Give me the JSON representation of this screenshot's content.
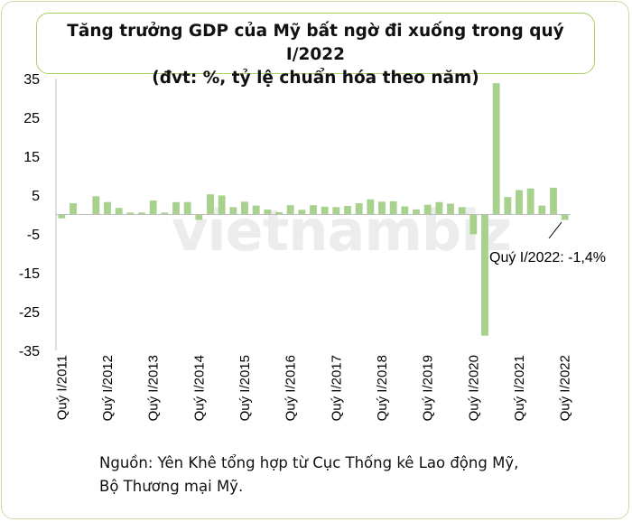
{
  "chart_data": {
    "type": "bar",
    "title": "Tăng trưởng GDP của Mỹ bất ngờ đi xuống trong quý I/2022",
    "subtitle": "(đvt: %, tỷ lệ chuẩn hóa theo năm)",
    "xlabel": "",
    "ylabel": "",
    "ylim": [
      -35,
      35
    ],
    "yticks": [
      35,
      25,
      15,
      5,
      -5,
      -15,
      -25,
      -35
    ],
    "grid": false,
    "bar_color": "#a9d18e",
    "categories": [
      "Quý I/2011",
      "Quý II/2011",
      "Quý III/2011",
      "Quý IV/2011",
      "Quý I/2012",
      "Quý II/2012",
      "Quý III/2012",
      "Quý IV/2012",
      "Quý I/2013",
      "Quý II/2013",
      "Quý III/2013",
      "Quý IV/2013",
      "Quý I/2014",
      "Quý II/2014",
      "Quý III/2014",
      "Quý IV/2014",
      "Quý I/2015",
      "Quý II/2015",
      "Quý III/2015",
      "Quý IV/2015",
      "Quý I/2016",
      "Quý II/2016",
      "Quý III/2016",
      "Quý IV/2016",
      "Quý I/2017",
      "Quý II/2017",
      "Quý III/2017",
      "Quý IV/2017",
      "Quý I/2018",
      "Quý II/2018",
      "Quý III/2018",
      "Quý IV/2018",
      "Quý I/2019",
      "Quý II/2019",
      "Quý III/2019",
      "Quý IV/2019",
      "Quý I/2020",
      "Quý II/2020",
      "Quý III/2020",
      "Quý IV/2020",
      "Quý I/2021",
      "Quý II/2021",
      "Quý III/2021",
      "Quý IV/2021",
      "Quý I/2022"
    ],
    "tick_labels": [
      "Quý I/2011",
      "Quý I/2012",
      "Quý I/2013",
      "Quý I/2014",
      "Quý I/2015",
      "Quý I/2016",
      "Quý I/2017",
      "Quý I/2018",
      "Quý I/2019",
      "Quý I/2020",
      "Quý I/2021",
      "Quý I/2022"
    ],
    "values": [
      -1.0,
      2.9,
      -0.1,
      4.7,
      3.2,
      1.7,
      0.5,
      0.5,
      3.6,
      0.5,
      3.2,
      3.2,
      -1.4,
      5.2,
      4.9,
      1.9,
      3.3,
      2.3,
      1.3,
      0.6,
      2.4,
      1.2,
      2.4,
      2.0,
      1.9,
      2.2,
      2.9,
      3.9,
      3.3,
      3.4,
      2.1,
      1.3,
      2.5,
      3.2,
      2.8,
      1.9,
      -5.1,
      -31.2,
      33.8,
      4.5,
      6.3,
      6.7,
      2.3,
      6.9,
      -1.4
    ],
    "annotation": "Quý I/2022: -1,4%",
    "watermark": "vietnambiz"
  },
  "source": {
    "line1": "Nguồn: Yên Khê tổng hợp từ Cục Thống kê Lao động Mỹ,",
    "line2": "Bộ Thương mại Mỹ."
  }
}
